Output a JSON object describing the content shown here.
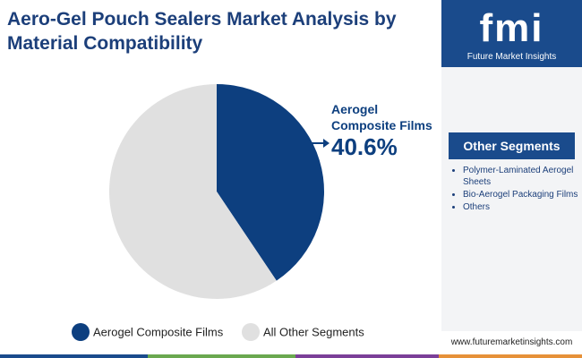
{
  "chart_data": {
    "type": "pie",
    "title": "Aero-Gel Pouch Sealers Market Analysis by Material Compatibility",
    "categories": [
      "Aerogel Composite Films",
      "All Other Segments"
    ],
    "values": [
      40.6,
      59.4
    ],
    "value_labels": [
      "40.6%",
      null
    ],
    "colors": [
      "#0d3f7f",
      "#e0e0e0"
    ]
  },
  "sidebar": {
    "logo": "fmi",
    "logo_subtitle": "Future Market Insights",
    "heading": "Other Segments",
    "items": [
      "Polymer-Laminated Aerogel Sheets",
      "Bio-Aerogel Packaging Films",
      "Others"
    ],
    "website": "www.futuremarketinsights.com"
  }
}
